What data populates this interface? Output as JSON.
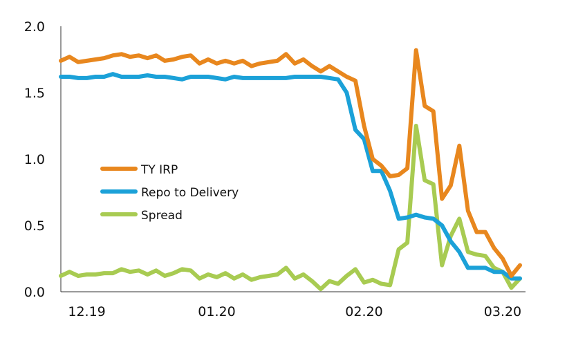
{
  "chart_data": {
    "type": "line",
    "title": "",
    "xlabel": "",
    "ylabel": "",
    "ylim": [
      0,
      2.0
    ],
    "yticks": [
      "0.0",
      "0.5",
      "1.0",
      "1.5",
      "2.0"
    ],
    "xticks": [
      "12.19",
      "01.20",
      "02.20",
      "03.20"
    ],
    "grid": false,
    "legend_position": "center-left",
    "series": [
      {
        "name": "TY IRP",
        "color": "#E8871E",
        "values": [
          1.74,
          1.77,
          1.73,
          1.74,
          1.75,
          1.76,
          1.78,
          1.79,
          1.77,
          1.78,
          1.76,
          1.78,
          1.74,
          1.75,
          1.77,
          1.78,
          1.72,
          1.75,
          1.72,
          1.74,
          1.72,
          1.74,
          1.7,
          1.72,
          1.73,
          1.74,
          1.79,
          1.72,
          1.75,
          1.7,
          1.66,
          1.7,
          1.66,
          1.62,
          1.59,
          1.25,
          1.0,
          0.95,
          0.87,
          0.88,
          0.93,
          1.82,
          1.4,
          1.36,
          0.7,
          0.8,
          1.1,
          0.61,
          0.45,
          0.45,
          0.33,
          0.25,
          0.12,
          0.2
        ]
      },
      {
        "name": "Repo to Delivery",
        "color": "#1BA1D8",
        "values": [
          1.62,
          1.62,
          1.61,
          1.61,
          1.62,
          1.62,
          1.64,
          1.62,
          1.62,
          1.62,
          1.63,
          1.62,
          1.62,
          1.61,
          1.6,
          1.62,
          1.62,
          1.62,
          1.61,
          1.6,
          1.62,
          1.61,
          1.61,
          1.61,
          1.61,
          1.61,
          1.61,
          1.62,
          1.62,
          1.62,
          1.62,
          1.61,
          1.6,
          1.5,
          1.22,
          1.15,
          0.91,
          0.91,
          0.76,
          0.55,
          0.56,
          0.58,
          0.56,
          0.55,
          0.5,
          0.38,
          0.3,
          0.18,
          0.18,
          0.18,
          0.15,
          0.15,
          0.1,
          0.1
        ]
      },
      {
        "name": "Spread",
        "color": "#A8CB52",
        "values": [
          0.12,
          0.15,
          0.12,
          0.13,
          0.13,
          0.14,
          0.14,
          0.17,
          0.15,
          0.16,
          0.13,
          0.16,
          0.12,
          0.14,
          0.17,
          0.16,
          0.1,
          0.13,
          0.11,
          0.14,
          0.1,
          0.13,
          0.09,
          0.11,
          0.12,
          0.13,
          0.18,
          0.1,
          0.13,
          0.08,
          0.02,
          0.08,
          0.06,
          0.12,
          0.17,
          0.07,
          0.09,
          0.06,
          0.05,
          0.32,
          0.37,
          1.25,
          0.84,
          0.81,
          0.2,
          0.42,
          0.55,
          0.3,
          0.28,
          0.27,
          0.18,
          0.15,
          0.03,
          0.1
        ]
      }
    ]
  }
}
